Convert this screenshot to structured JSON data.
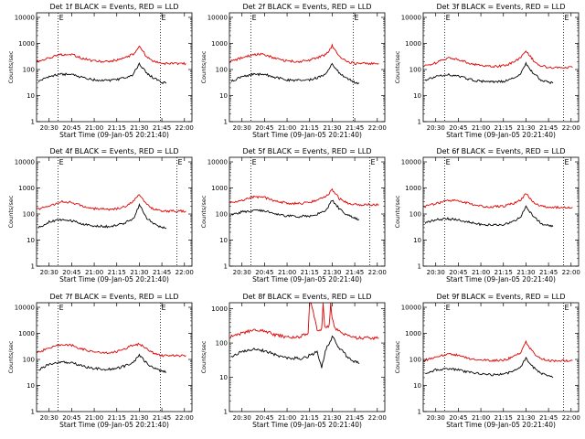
{
  "colors": {
    "events": "#000000",
    "lld": "#e00000",
    "frame": "#000000"
  },
  "xlabel": "Start Time (09-Jan-05 20:21:40)",
  "ylabel": "Counts/sec",
  "x_tick_labels": [
    "20:30",
    "20:45",
    "21:00",
    "21:15",
    "21:30",
    "21:45",
    "22:00"
  ],
  "y_tick_labels": [
    "1",
    "10",
    "100",
    "1000",
    "10000"
  ],
  "marker_glyph": "E",
  "chart_data": [
    {
      "type": "line",
      "title": "Det 1f BLACK = Events, RED = LLD",
      "xlim": [
        "20:21:40",
        "22:05"
      ],
      "ylim": [
        1,
        15000
      ],
      "yscale": "log",
      "marker_times": [
        "20:36",
        "21:44"
      ],
      "series": [
        {
          "name": "LLD",
          "color": "#e00000",
          "x": [
            "20:21:40",
            "20:30",
            "20:38",
            "20:45",
            "20:52",
            "21:00",
            "21:08",
            "21:15",
            "21:20",
            "21:26",
            "21:30",
            "21:35",
            "21:40",
            "21:45",
            "21:55",
            "22:01"
          ],
          "values": [
            200,
            270,
            380,
            380,
            270,
            210,
            200,
            230,
            280,
            380,
            800,
            300,
            200,
            170,
            170,
            170
          ]
        },
        {
          "name": "Events",
          "color": "#000000",
          "x": [
            "20:23",
            "20:30",
            "20:38",
            "20:45",
            "20:52",
            "21:00",
            "21:08",
            "21:15",
            "21:20",
            "21:26",
            "21:30",
            "21:35",
            "21:40",
            "21:45",
            "21:48"
          ],
          "values": [
            35,
            55,
            65,
            65,
            50,
            40,
            38,
            40,
            48,
            65,
            170,
            70,
            45,
            32,
            30
          ]
        }
      ]
    },
    {
      "type": "line",
      "title": "Det 2f BLACK = Events, RED = LLD",
      "xlim": [
        "20:21:40",
        "22:05"
      ],
      "ylim": [
        1,
        15000
      ],
      "yscale": "log",
      "marker_times": [
        "20:36",
        "21:44"
      ],
      "series": [
        {
          "name": "LLD",
          "color": "#e00000",
          "x": [
            "20:21:40",
            "20:30",
            "20:38",
            "20:45",
            "20:52",
            "21:00",
            "21:08",
            "21:15",
            "21:20",
            "21:26",
            "21:30",
            "21:35",
            "21:40",
            "21:45",
            "21:55",
            "22:01"
          ],
          "values": [
            200,
            280,
            380,
            380,
            270,
            210,
            200,
            230,
            280,
            380,
            820,
            300,
            200,
            170,
            170,
            170
          ]
        },
        {
          "name": "Events",
          "color": "#000000",
          "x": [
            "20:23",
            "20:30",
            "20:38",
            "20:45",
            "20:52",
            "21:00",
            "21:08",
            "21:15",
            "21:20",
            "21:26",
            "21:30",
            "21:35",
            "21:40",
            "21:45",
            "21:48"
          ],
          "values": [
            35,
            55,
            65,
            65,
            50,
            40,
            38,
            40,
            48,
            65,
            170,
            70,
            45,
            32,
            30
          ]
        }
      ]
    },
    {
      "type": "line",
      "title": "Det 3f BLACK = Events, RED = LLD",
      "xlim": [
        "20:21:40",
        "22:05"
      ],
      "ylim": [
        1,
        15000
      ],
      "yscale": "log",
      "marker_times": [
        "20:36",
        "21:55"
      ],
      "series": [
        {
          "name": "LLD",
          "color": "#e00000",
          "x": [
            "20:21:40",
            "20:30",
            "20:38",
            "20:45",
            "20:52",
            "21:00",
            "21:08",
            "21:15",
            "21:20",
            "21:26",
            "21:30",
            "21:35",
            "21:40",
            "21:45",
            "21:55",
            "22:01"
          ],
          "values": [
            130,
            180,
            280,
            250,
            180,
            140,
            130,
            140,
            170,
            260,
            550,
            220,
            140,
            120,
            120,
            120
          ]
        },
        {
          "name": "Events",
          "color": "#000000",
          "x": [
            "20:23",
            "20:30",
            "20:38",
            "20:45",
            "20:52",
            "21:00",
            "21:08",
            "21:15",
            "21:20",
            "21:26",
            "21:30",
            "21:35",
            "21:40",
            "21:45",
            "21:48"
          ],
          "values": [
            40,
            55,
            65,
            55,
            42,
            35,
            33,
            35,
            42,
            60,
            170,
            70,
            40,
            32,
            30
          ]
        }
      ]
    },
    {
      "type": "line",
      "title": "Det 4f BLACK = Events, RED = LLD",
      "xlim": [
        "20:21:40",
        "22:05"
      ],
      "ylim": [
        1,
        15000
      ],
      "yscale": "log",
      "marker_times": [
        "20:36",
        "21:55"
      ],
      "series": [
        {
          "name": "LLD",
          "color": "#e00000",
          "x": [
            "20:21:40",
            "20:30",
            "20:38",
            "20:45",
            "20:52",
            "21:00",
            "21:08",
            "21:15",
            "21:20",
            "21:26",
            "21:30",
            "21:35",
            "21:40",
            "21:45",
            "21:55",
            "22:01"
          ],
          "values": [
            150,
            200,
            300,
            280,
            200,
            160,
            150,
            160,
            190,
            300,
            550,
            230,
            150,
            130,
            130,
            130
          ]
        },
        {
          "name": "Events",
          "color": "#000000",
          "x": [
            "20:23",
            "20:30",
            "20:38",
            "20:45",
            "20:52",
            "21:00",
            "21:08",
            "21:15",
            "21:20",
            "21:26",
            "21:30",
            "21:35",
            "21:40",
            "21:45",
            "21:48"
          ],
          "values": [
            30,
            50,
            60,
            55,
            42,
            35,
            33,
            36,
            45,
            65,
            220,
            70,
            40,
            30,
            28
          ]
        }
      ]
    },
    {
      "type": "line",
      "title": "Det 5f BLACK = Events, RED = LLD",
      "xlim": [
        "20:21:40",
        "22:05"
      ],
      "ylim": [
        1,
        15000
      ],
      "yscale": "log",
      "marker_times": [
        "20:36",
        "21:55"
      ],
      "series": [
        {
          "name": "LLD",
          "color": "#e00000",
          "x": [
            "20:21:40",
            "20:30",
            "20:38",
            "20:45",
            "20:52",
            "21:00",
            "21:08",
            "21:15",
            "21:20",
            "21:26",
            "21:30",
            "21:35",
            "21:40",
            "21:45",
            "21:55",
            "22:01"
          ],
          "values": [
            260,
            340,
            450,
            430,
            320,
            260,
            250,
            280,
            350,
            480,
            850,
            380,
            260,
            230,
            230,
            230
          ]
        },
        {
          "name": "Events",
          "color": "#000000",
          "x": [
            "20:23",
            "20:30",
            "20:38",
            "20:45",
            "20:52",
            "21:00",
            "21:08",
            "21:15",
            "21:20",
            "21:26",
            "21:30",
            "21:35",
            "21:40",
            "21:45",
            "21:48"
          ],
          "values": [
            90,
            120,
            140,
            130,
            100,
            85,
            80,
            85,
            100,
            140,
            350,
            150,
            90,
            70,
            60
          ]
        }
      ]
    },
    {
      "type": "line",
      "title": "Det 6f BLACK = Events, RED = LLD",
      "xlim": [
        "20:21:40",
        "22:05"
      ],
      "ylim": [
        1,
        15000
      ],
      "yscale": "log",
      "marker_times": [
        "20:36",
        "21:55"
      ],
      "series": [
        {
          "name": "LLD",
          "color": "#e00000",
          "x": [
            "20:21:40",
            "20:30",
            "20:38",
            "20:45",
            "20:52",
            "21:00",
            "21:08",
            "21:15",
            "21:20",
            "21:26",
            "21:30",
            "21:35",
            "21:40",
            "21:45",
            "21:55",
            "22:01"
          ],
          "values": [
            190,
            250,
            330,
            320,
            250,
            200,
            190,
            200,
            240,
            330,
            600,
            280,
            200,
            180,
            180,
            180
          ]
        },
        {
          "name": "Events",
          "color": "#000000",
          "x": [
            "20:23",
            "20:30",
            "20:38",
            "20:45",
            "20:52",
            "21:00",
            "21:08",
            "21:15",
            "21:20",
            "21:26",
            "21:30",
            "21:35",
            "21:40",
            "21:45",
            "21:48"
          ],
          "values": [
            45,
            60,
            65,
            60,
            48,
            40,
            38,
            40,
            48,
            70,
            200,
            80,
            45,
            35,
            33
          ]
        }
      ]
    },
    {
      "type": "line",
      "title": "Det 7f BLACK = Events, RED = LLD",
      "xlim": [
        "20:21:40",
        "22:05"
      ],
      "ylim": [
        1,
        15000
      ],
      "yscale": "log",
      "marker_times": [
        "20:36",
        "21:44"
      ],
      "series": [
        {
          "name": "LLD",
          "color": "#e00000",
          "x": [
            "20:21:40",
            "20:30",
            "20:38",
            "20:45",
            "20:52",
            "21:00",
            "21:08",
            "21:15",
            "21:20",
            "21:26",
            "21:30",
            "21:35",
            "21:40",
            "21:45",
            "21:55",
            "22:01"
          ],
          "values": [
            180,
            270,
            380,
            350,
            250,
            190,
            180,
            200,
            260,
            340,
            400,
            250,
            170,
            140,
            140,
            140
          ]
        },
        {
          "name": "Events",
          "color": "#000000",
          "x": [
            "20:23",
            "20:30",
            "20:38",
            "20:45",
            "20:52",
            "21:00",
            "21:08",
            "21:15",
            "21:20",
            "21:26",
            "21:30",
            "21:35",
            "21:40",
            "21:45",
            "21:48"
          ],
          "values": [
            40,
            65,
            80,
            75,
            55,
            45,
            42,
            45,
            55,
            75,
            150,
            70,
            45,
            35,
            32
          ]
        }
      ]
    },
    {
      "type": "line",
      "title": "Det 8f BLACK = Events, RED = LLD",
      "xlim": [
        "20:21:40",
        "22:05"
      ],
      "ylim": [
        1,
        1500
      ],
      "yscale": "log",
      "marker_times": [],
      "series": [
        {
          "name": "LLD",
          "color": "#e00000",
          "x": [
            "20:21:40",
            "20:30",
            "20:38",
            "20:45",
            "20:52",
            "21:00",
            "21:08",
            "21:12",
            "21:14",
            "21:15",
            "21:16",
            "21:20",
            "21:23",
            "21:24",
            "21:25",
            "21:28",
            "21:29",
            "21:30",
            "21:32",
            "21:38",
            "21:45",
            "21:55",
            "22:01"
          ],
          "values": [
            150,
            190,
            250,
            230,
            170,
            150,
            150,
            180,
            180,
            1500,
            1500,
            230,
            260,
            1500,
            300,
            300,
            1500,
            500,
            260,
            180,
            140,
            140,
            140
          ]
        },
        {
          "name": "Events",
          "color": "#000000",
          "x": [
            "20:23",
            "20:30",
            "20:38",
            "20:45",
            "20:52",
            "21:00",
            "21:08",
            "21:12",
            "21:16",
            "21:20",
            "21:23",
            "21:26",
            "21:30",
            "21:35",
            "21:40",
            "21:45",
            "21:48"
          ],
          "values": [
            40,
            55,
            65,
            60,
            45,
            38,
            35,
            38,
            45,
            55,
            20,
            70,
            150,
            70,
            40,
            28,
            25
          ]
        }
      ]
    },
    {
      "type": "line",
      "title": "Det 9f BLACK = Events, RED = LLD",
      "xlim": [
        "20:21:40",
        "22:05"
      ],
      "ylim": [
        1,
        15000
      ],
      "yscale": "log",
      "marker_times": [
        "20:36",
        "21:55"
      ],
      "series": [
        {
          "name": "LLD",
          "color": "#e00000",
          "x": [
            "20:21:40",
            "20:30",
            "20:38",
            "20:45",
            "20:52",
            "21:00",
            "21:08",
            "21:15",
            "21:20",
            "21:26",
            "21:30",
            "21:35",
            "21:40",
            "21:45",
            "21:55",
            "22:01"
          ],
          "values": [
            90,
            120,
            160,
            150,
            110,
            95,
            90,
            95,
            115,
            170,
            450,
            180,
            110,
            90,
            90,
            90
          ]
        },
        {
          "name": "Events",
          "color": "#000000",
          "x": [
            "20:23",
            "20:30",
            "20:38",
            "20:45",
            "20:52",
            "21:00",
            "21:08",
            "21:15",
            "21:20",
            "21:26",
            "21:30",
            "21:35",
            "21:40",
            "21:45",
            "21:48"
          ],
          "values": [
            28,
            40,
            45,
            40,
            32,
            28,
            26,
            28,
            32,
            45,
            110,
            50,
            30,
            22,
            20
          ]
        }
      ]
    }
  ]
}
